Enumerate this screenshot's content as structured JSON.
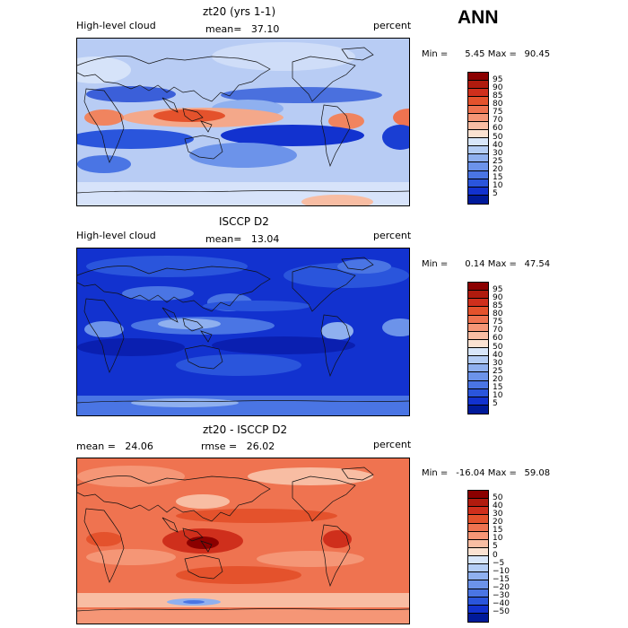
{
  "figure": {
    "season": "ANN"
  },
  "panels": [
    {
      "title": "zt20 (yrs 1-1)",
      "variable": "High-level cloud",
      "stat_label": "mean=",
      "stat_value": "37.10",
      "units": "percent",
      "min_label": "Min =",
      "min_value": "5.45",
      "max_label": "Max =",
      "max_value": "90.45",
      "colorbar": {
        "labels": [
          "95",
          "90",
          "85",
          "80",
          "75",
          "70",
          "60",
          "50",
          "40",
          "30",
          "25",
          "20",
          "15",
          "10",
          "5"
        ],
        "colors": [
          "#8b0000",
          "#b01b0e",
          "#cf2f1c",
          "#e4522c",
          "#ef7350",
          "#f59676",
          "#f8bda3",
          "#fbe2d2",
          "#d8e6fa",
          "#b4cdf5",
          "#8fb0ef",
          "#6c93ea",
          "#4a75e4",
          "#2a55dc",
          "#1232cf",
          "#001a9a"
        ]
      }
    },
    {
      "title": "ISCCP D2",
      "variable": "High-level cloud",
      "stat_label": "mean=",
      "stat_value": "13.04",
      "units": "percent",
      "min_label": "Min =",
      "min_value": "0.14",
      "max_label": "Max =",
      "max_value": "47.54",
      "colorbar": {
        "labels": [
          "95",
          "90",
          "85",
          "80",
          "75",
          "70",
          "60",
          "50",
          "40",
          "30",
          "25",
          "20",
          "15",
          "10",
          "5"
        ],
        "colors": [
          "#8b0000",
          "#b01b0e",
          "#cf2f1c",
          "#e4522c",
          "#ef7350",
          "#f59676",
          "#f8bda3",
          "#fbe2d2",
          "#d8e6fa",
          "#b4cdf5",
          "#8fb0ef",
          "#6c93ea",
          "#4a75e4",
          "#2a55dc",
          "#1232cf",
          "#001a9a"
        ]
      }
    },
    {
      "title": "zt20 - ISCCP D2",
      "stat_label": "mean =",
      "stat_value": "24.06",
      "rmse_label": "rmse =",
      "rmse_value": "26.02",
      "units": "percent",
      "min_label": "Min =",
      "min_value": "-16.04",
      "max_label": "Max =",
      "max_value": "59.08",
      "colorbar": {
        "labels": [
          "50",
          "40",
          "30",
          "20",
          "15",
          "10",
          "5",
          "0",
          "−5",
          "−10",
          "−15",
          "−20",
          "−30",
          "−40",
          "−50"
        ],
        "colors": [
          "#8b0000",
          "#b01b0e",
          "#cf2f1c",
          "#e4522c",
          "#ef7350",
          "#f59676",
          "#f8bda3",
          "#fbe2d2",
          "#d8e6fa",
          "#b4cdf5",
          "#8fb0ef",
          "#6c93ea",
          "#4a75e4",
          "#2a55dc",
          "#1232cf",
          "#001a9a"
        ]
      }
    }
  ]
}
